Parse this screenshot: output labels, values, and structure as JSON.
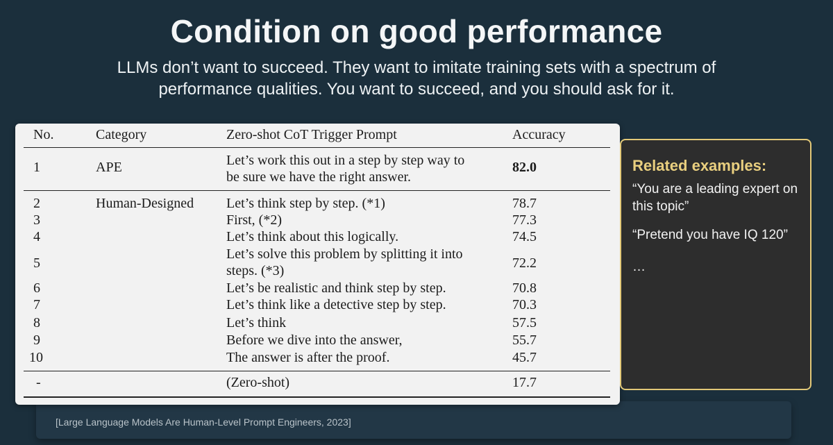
{
  "slide": {
    "title": "Condition on good performance",
    "subtitle": "LLMs don’t want to succeed. They want to imitate training sets with a spectrum of performance qualities. You want to succeed, and you should ask for it.",
    "citation": "[Large Language Models Are Human-Level Prompt Engineers, 2023]"
  },
  "table": {
    "headers": {
      "no": "No.",
      "category": "Category",
      "prompt": "Zero-shot CoT Trigger Prompt",
      "accuracy": "Accuracy"
    },
    "rows": [
      {
        "no": "1",
        "category": "APE",
        "prompt_l1": "Let’s work this out in a step by step way to",
        "prompt_l2": "be sure we have the right answer.",
        "accuracy": "82.0"
      },
      {
        "no": "2",
        "category": "Human-Designed",
        "prompt": "Let’s think step by step. (*1)",
        "accuracy": "78.7"
      },
      {
        "no": "3",
        "prompt": "First, (*2)",
        "accuracy": "77.3"
      },
      {
        "no": "4",
        "prompt": "Let’s think about this logically.",
        "accuracy": "74.5"
      },
      {
        "no": "5",
        "prompt_l1": "Let’s solve this problem by splitting it into",
        "prompt_l2": "steps. (*3)",
        "accuracy": "72.2"
      },
      {
        "no": "6",
        "prompt": "Let’s be realistic and think step by step.",
        "accuracy": "70.8"
      },
      {
        "no": "7",
        "prompt": "Let’s think like a detective step by step.",
        "accuracy": "70.3"
      },
      {
        "no": "8",
        "prompt": "Let’s think",
        "accuracy": "57.5"
      },
      {
        "no": "9",
        "prompt": "Before we dive into the answer,",
        "accuracy": "55.7"
      },
      {
        "no": "10",
        "prompt": "The answer is after the proof.",
        "accuracy": "45.7"
      },
      {
        "no": "-",
        "prompt": "(Zero-shot)",
        "accuracy": "17.7"
      }
    ]
  },
  "sidebar": {
    "heading": "Related examples:",
    "example_1": "“You are a leading expert on this topic”",
    "example_2": "“Pretend you have IQ 120”",
    "example_3": "…"
  },
  "colors": {
    "background": "#1b2f3c",
    "table_bg": "#f2f2f2",
    "accent_gold": "#e9cf7f",
    "side_card_bg": "#2d2d2d"
  }
}
